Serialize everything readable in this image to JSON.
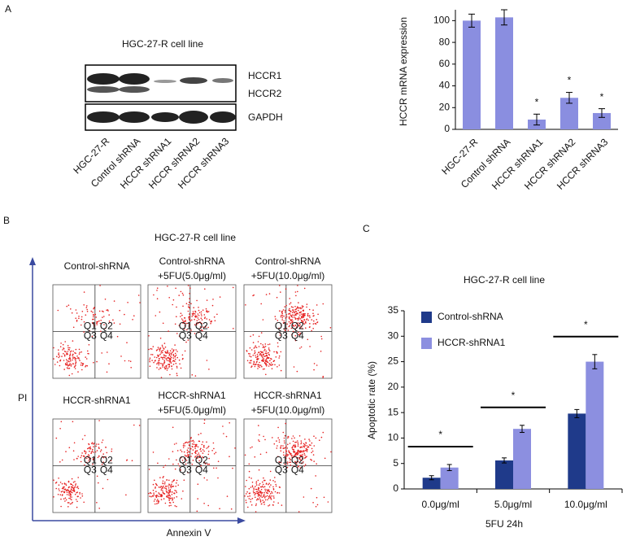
{
  "panel_letters": [
    "A",
    "B",
    "C"
  ],
  "blot": {
    "title": "HGC-27-R cell line",
    "bands": [
      "HCCR1",
      "HCCR2",
      "GAPDH"
    ],
    "lanes": [
      "HGC-27-R",
      "Control shRNA",
      "HCCR shRNA1",
      "HCCR shRNA2",
      "HCCR shRNA3"
    ]
  },
  "flow": {
    "title": "HGC-27-R cell line",
    "xlabel": "Annexin V",
    "ylabel": "PI",
    "quadrants": [
      "Q1",
      "Q2",
      "Q3",
      "Q4"
    ],
    "plots": [
      {
        "label": [
          "Control-shRNA"
        ]
      },
      {
        "label": [
          "Control-shRNA",
          "+5FU(5.0μg/ml)"
        ]
      },
      {
        "label": [
          "Control-shRNA",
          "+5FU(10.0μg/ml)"
        ]
      },
      {
        "label": [
          "HCCR-shRNA1"
        ]
      },
      {
        "label": [
          "HCCR-shRNA1",
          "+5FU(5.0μg/ml)"
        ]
      },
      {
        "label": [
          "HCCR-shRNA1",
          "+5FU(10.0μg/ml)"
        ]
      }
    ]
  },
  "chart_data": [
    {
      "type": "bar",
      "ylabel": "HCCR mRNA expression",
      "categories": [
        "HGC-27-R",
        "Control shRNA",
        "HCCR shRNA1",
        "HCCR shRNA2",
        "HCCR shRNA3"
      ],
      "values": [
        100,
        103,
        9,
        29,
        15
      ],
      "errors": [
        6,
        7,
        5,
        5,
        4
      ],
      "significance": [
        null,
        null,
        "*",
        "*",
        "*"
      ],
      "color": "#8a8ee0",
      "ylim": [
        0,
        110
      ],
      "yticks": [
        0,
        20,
        40,
        60,
        80,
        100
      ]
    },
    {
      "type": "grouped-bar",
      "title": "HGC-27-R cell line",
      "ylabel": "Apoptotic rate (%)",
      "xlabel": "5FU   24h",
      "categories": [
        "0.0μg/ml",
        "5.0μg/ml",
        "10.0μg/ml"
      ],
      "series": [
        {
          "name": "Control-shRNA",
          "color": "#1f3a8a",
          "values": [
            2.2,
            5.6,
            14.8
          ],
          "errors": [
            0.4,
            0.5,
            0.8
          ]
        },
        {
          "name": "HCCR-shRNA1",
          "color": "#8c8fe0",
          "values": [
            4.2,
            11.8,
            25
          ],
          "errors": [
            0.6,
            0.7,
            1.4
          ]
        }
      ],
      "significance": [
        "*",
        "*",
        "*"
      ],
      "ylim": [
        0,
        35
      ],
      "yticks": [
        0,
        5,
        10,
        15,
        20,
        25,
        30,
        35
      ]
    }
  ]
}
